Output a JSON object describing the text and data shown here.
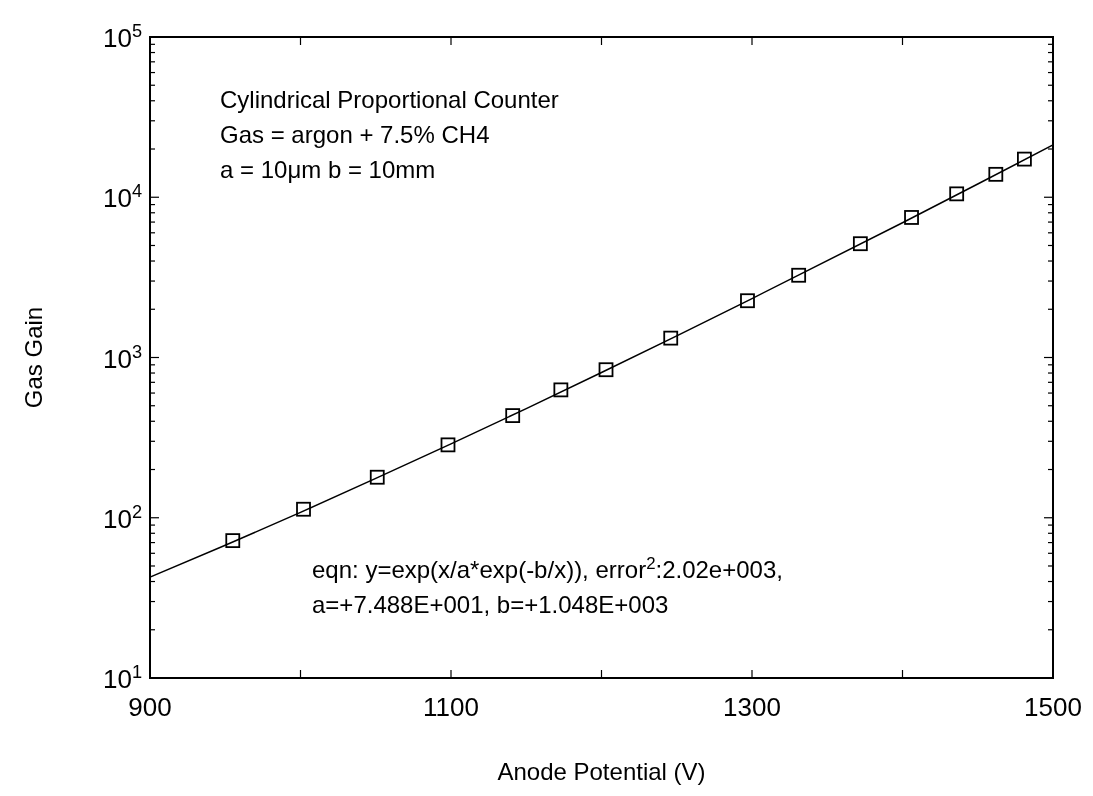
{
  "chart_data": {
    "type": "scatter",
    "xlabel": "Anode Potential (V)",
    "ylabel": "Gas Gain",
    "log": "y",
    "grid": false,
    "xlim": [
      900,
      1500
    ],
    "ylim": [
      10,
      100000
    ],
    "xticks": [
      900,
      {
        "value": 1000,
        "label": null
      },
      1100,
      {
        "value": 1200,
        "label": null
      },
      1300,
      {
        "value": 1400,
        "label": null
      },
      1500
    ],
    "yticks": [
      {
        "value": 10,
        "label": "10$^{1}$"
      },
      {
        "value": 20,
        "label": null
      },
      {
        "value": 30,
        "label": null
      },
      {
        "value": 40,
        "label": null
      },
      {
        "value": 50,
        "label": null
      },
      {
        "value": 60,
        "label": null
      },
      {
        "value": 70,
        "label": null
      },
      {
        "value": 80,
        "label": null
      },
      {
        "value": 90,
        "label": null
      },
      {
        "value": 100,
        "label": "10$^{2}$"
      },
      {
        "value": 200,
        "label": null
      },
      {
        "value": 300,
        "label": null
      },
      {
        "value": 400,
        "label": null
      },
      {
        "value": 500,
        "label": null
      },
      {
        "value": 600,
        "label": null
      },
      {
        "value": 700,
        "label": null
      },
      {
        "value": 800,
        "label": null
      },
      {
        "value": 900,
        "label": null
      },
      {
        "value": 1000,
        "label": "10$^{3}$"
      },
      {
        "value": 2000,
        "label": null
      },
      {
        "value": 3000,
        "label": null
      },
      {
        "value": 4000,
        "label": null
      },
      {
        "value": 5000,
        "label": null
      },
      {
        "value": 6000,
        "label": null
      },
      {
        "value": 7000,
        "label": null
      },
      {
        "value": 8000,
        "label": null
      },
      {
        "value": 9000,
        "label": null
      },
      {
        "value": 10000,
        "label": "10$^{4}$"
      },
      {
        "value": 20000,
        "label": null
      },
      {
        "value": 30000,
        "label": null
      },
      {
        "value": 40000,
        "label": null
      },
      {
        "value": 50000,
        "label": null
      },
      {
        "value": 60000,
        "label": null
      },
      {
        "value": 70000,
        "label": null
      },
      {
        "value": 80000,
        "label": null
      },
      {
        "value": 90000,
        "label": null
      },
      {
        "value": 100000,
        "label": "10$^{5}$"
      }
    ],
    "series": [
      {
        "type": "line",
        "color": "#000000",
        "marker": "none",
        "line_style": "solid",
        "x": [
          900,
          950,
          1000,
          1050,
          1100,
          1150,
          1200,
          1250,
          1300,
          1400,
          1450,
          1500
        ],
        "values": [
          42.6,
          67.3,
          108,
          176,
          289,
          480,
          806,
          1364,
          2332,
          6935,
          12090,
          21200
        ]
      },
      {
        "color": "#000000",
        "marker": "square",
        "x": [
          955,
          1002,
          1051,
          1098,
          1141,
          1173,
          1203,
          1246,
          1297,
          1331,
          1372,
          1406,
          1436,
          1462,
          1481
        ],
        "values": [
          72,
          113,
          179,
          285,
          434,
          628,
          839,
          1321,
          2261,
          3260,
          5130,
          7480,
          10500,
          13900,
          17300
        ]
      }
    ],
    "annotations": [
      "Cylindrical Proportional Counter",
      "Gas = argon + 7.5% CH4",
      "a = 10μm  b = 10mm",
      "eqn: y=exp(x/a*exp(-b/x)), error$^{2}$:2.02e+003,",
      "a=+7.488E+001, b=+1.048E+003"
    ]
  }
}
